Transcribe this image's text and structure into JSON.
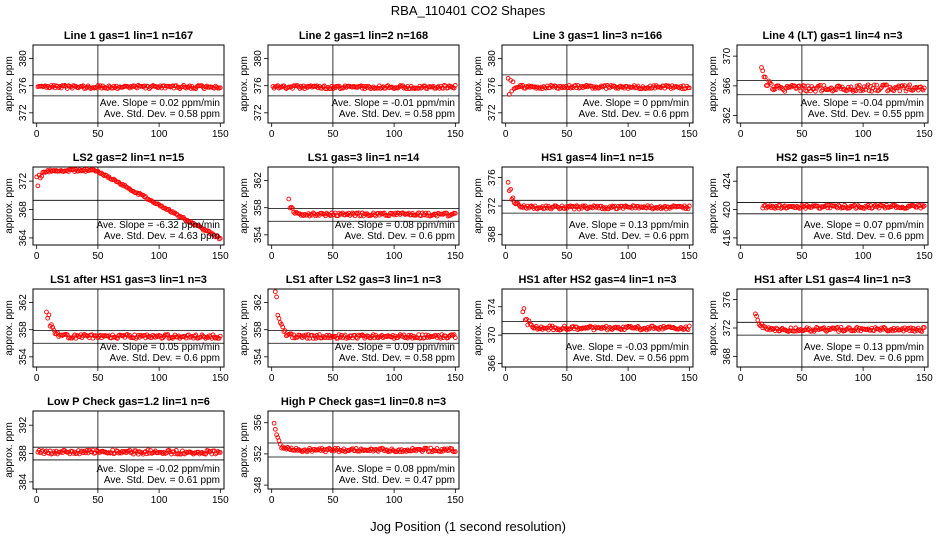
{
  "figure": {
    "title": "RBA_110401  CO2 Shapes",
    "xlabel": "Jog Position (1 second resolution)"
  },
  "colors": {
    "points": "#ff0000",
    "axes": "#000000"
  },
  "chart_data": [
    {
      "type": "scatter",
      "title": "Line 1 gas=1 lin=1 n=167",
      "ylabel": "approx. ppm",
      "xlim": [
        -3,
        153
      ],
      "xticks": [
        0,
        50,
        100,
        150
      ],
      "ylim": [
        370.5,
        382
      ],
      "yticks": [
        372,
        376,
        380
      ],
      "hlines": [
        377.6,
        374.5
      ],
      "vline": 50,
      "x_start": 1,
      "x_end": 150,
      "shape": "flat",
      "base": 375.8,
      "noise": 0.25,
      "annotation": [
        "Ave. Slope = 0.02 ppm/min",
        "Ave. Std. Dev. = 0.58 ppm"
      ]
    },
    {
      "type": "scatter",
      "title": "Line 2 gas=1 lin=2 n=168",
      "ylabel": "approx. ppm",
      "xlim": [
        -3,
        153
      ],
      "xticks": [
        0,
        50,
        100,
        150
      ],
      "ylim": [
        370.5,
        382
      ],
      "yticks": [
        372,
        376,
        380
      ],
      "hlines": [
        377.6,
        374.5
      ],
      "vline": 50,
      "x_start": 1,
      "x_end": 150,
      "shape": "flat",
      "base": 375.8,
      "noise": 0.25,
      "annotation": [
        "Ave. Slope = -0.01 ppm/min",
        "Ave. Std. Dev. = 0.58 ppm"
      ]
    },
    {
      "type": "scatter",
      "title": "Line 3 gas=1 lin=3 n=166",
      "ylabel": "approx. ppm",
      "xlim": [
        -3,
        153
      ],
      "xticks": [
        0,
        50,
        100,
        150
      ],
      "ylim": [
        370.5,
        382
      ],
      "yticks": [
        372,
        376,
        380
      ],
      "hlines": [
        377.6,
        374.5
      ],
      "vline": 50,
      "x_start": 2,
      "x_end": 150,
      "shape": "dip",
      "base": 375.8,
      "noise": 0.25,
      "annotation": [
        "Ave. Slope = 0 ppm/min",
        "Ave. Std. Dev. = 0.6 ppm"
      ]
    },
    {
      "type": "scatter",
      "title": "Line 4 (LT) gas=1 lin=4 n=3",
      "ylabel": "approx. ppm",
      "xlim": [
        -3,
        153
      ],
      "xticks": [
        0,
        50,
        100,
        150
      ],
      "ylim": [
        361,
        371.5
      ],
      "yticks": [
        362,
        366,
        370
      ],
      "hlines": [
        366.7,
        364.8
      ],
      "vline": 50,
      "x_start": 17,
      "x_end": 150,
      "shape": "spike",
      "base": 365.7,
      "noise": 0.45,
      "peak": 369.2,
      "annotation": [
        "Ave. Slope = -0.04 ppm/min",
        "Ave. Std. Dev. = 0.55 ppm"
      ]
    },
    {
      "type": "scatter",
      "title": "LS2 gas=2 lin=1 n=15",
      "ylabel": "approx. ppm",
      "xlim": [
        -3,
        153
      ],
      "xticks": [
        0,
        50,
        100,
        150
      ],
      "ylim": [
        363,
        374
      ],
      "yticks": [
        364,
        368,
        372
      ],
      "hlines": [
        369.3,
        366.6
      ],
      "vline": 50,
      "x_start": 0,
      "x_end": 150,
      "shape": "decline",
      "base": 373.5,
      "noise": 0.15,
      "annotation": [
        "Ave. Slope = -6.32 ppm/min",
        "Ave. Std. Dev. = 4.63 ppm"
      ]
    },
    {
      "type": "scatter",
      "title": "LS1 gas=3 lin=1 n=14",
      "ylabel": "approx. ppm",
      "xlim": [
        -3,
        153
      ],
      "xticks": [
        0,
        50,
        100,
        150
      ],
      "ylim": [
        352.5,
        364
      ],
      "yticks": [
        354,
        358,
        362
      ],
      "hlines": [
        357.9,
        356.0
      ],
      "vline": 50,
      "x_start": 14,
      "x_end": 150,
      "shape": "spike",
      "base": 357.0,
      "noise": 0.25,
      "peak": 358.8,
      "annotation": [
        "Ave. Slope = 0.08 ppm/min",
        "Ave. Std. Dev. = 0.6 ppm"
      ]
    },
    {
      "type": "scatter",
      "title": "HS1 gas=4 lin=1 n=15",
      "ylabel": "approx. ppm",
      "xlim": [
        -3,
        153
      ],
      "xticks": [
        0,
        50,
        100,
        150
      ],
      "ylim": [
        366.5,
        377.5
      ],
      "yticks": [
        368,
        372,
        376
      ],
      "hlines": [
        372.8,
        371.0
      ],
      "vline": 50,
      "x_start": 2,
      "x_end": 150,
      "shape": "spike",
      "base": 371.8,
      "noise": 0.25,
      "peak": 376.2,
      "annotation": [
        "Ave. Slope = 0.13 ppm/min",
        "Ave. Std. Dev. = 0.6 ppm"
      ]
    },
    {
      "type": "scatter",
      "title": "HS2 gas=5 lin=1 n=15",
      "ylabel": "approx. ppm",
      "xlim": [
        -3,
        153
      ],
      "xticks": [
        0,
        50,
        100,
        150
      ],
      "ylim": [
        415,
        426
      ],
      "yticks": [
        416,
        420,
        424
      ],
      "hlines": [
        421.0,
        419.4
      ],
      "vline": 50,
      "x_start": 18,
      "x_end": 150,
      "shape": "flat",
      "base": 420.4,
      "noise": 0.25,
      "annotation": [
        "Ave. Slope = 0.07 ppm/min",
        "Ave. Std. Dev. = 0.6 ppm"
      ]
    },
    {
      "type": "scatter",
      "title": "LS1 after HS1 gas=3 lin=1 n=3",
      "ylabel": "approx. ppm",
      "xlim": [
        -3,
        153
      ],
      "xticks": [
        0,
        50,
        100,
        150
      ],
      "ylim": [
        352.5,
        364
      ],
      "yticks": [
        354,
        358,
        362
      ],
      "hlines": [
        357.9,
        356.0
      ],
      "vline": 50,
      "x_start": 8,
      "x_end": 150,
      "shape": "spike",
      "base": 357.0,
      "noise": 0.3,
      "peak": 361.8,
      "annotation": [
        "Ave. Slope = 0.05 ppm/min",
        "Ave. Std. Dev. = 0.6 ppm"
      ]
    },
    {
      "type": "scatter",
      "title": "LS1 after LS2 gas=3 lin=1 n=3",
      "ylabel": "approx. ppm",
      "xlim": [
        -3,
        153
      ],
      "xticks": [
        0,
        50,
        100,
        150
      ],
      "ylim": [
        352.5,
        364
      ],
      "yticks": [
        354,
        358,
        362
      ],
      "hlines": [
        357.9,
        356.0
      ],
      "vline": 50,
      "x_start": 3,
      "x_end": 150,
      "shape": "spike",
      "base": 357.0,
      "noise": 0.3,
      "peak": 363.7,
      "annotation": [
        "Ave. Slope = 0.09 ppm/min",
        "Ave. Std. Dev. = 0.58 ppm"
      ]
    },
    {
      "type": "scatter",
      "title": "HS1 after HS2 gas=4 lin=1 n=3",
      "ylabel": "approx. ppm",
      "xlim": [
        -3,
        153
      ],
      "xticks": [
        0,
        50,
        100,
        150
      ],
      "ylim": [
        365.5,
        376.5
      ],
      "yticks": [
        366,
        370,
        374
      ],
      "hlines": [
        371.9,
        370.2
      ],
      "vline": 50,
      "x_start": 14,
      "x_end": 150,
      "shape": "spike",
      "base": 371.0,
      "noise": 0.3,
      "peak": 374.3,
      "annotation": [
        "Ave. Slope = -0.03 ppm/min",
        "Ave. Std. Dev. = 0.56 ppm"
      ]
    },
    {
      "type": "scatter",
      "title": "HS1 after LS1 gas=4 lin=1 n=3",
      "ylabel": "approx. ppm",
      "xlim": [
        -3,
        153
      ],
      "xticks": [
        0,
        50,
        100,
        150
      ],
      "ylim": [
        366.5,
        377.5
      ],
      "yticks": [
        368,
        372,
        376
      ],
      "hlines": [
        372.8,
        371.0
      ],
      "vline": 50,
      "x_start": 12,
      "x_end": 150,
      "shape": "spike",
      "base": 371.8,
      "noise": 0.3,
      "peak": 374.2,
      "annotation": [
        "Ave. Slope = 0.13 ppm/min",
        "Ave. Std. Dev. = 0.6 ppm"
      ]
    },
    {
      "type": "scatter",
      "title": "Low P Check gas=1.2 lin=1 n=6",
      "ylabel": "approx. ppm",
      "xlim": [
        -3,
        153
      ],
      "xticks": [
        0,
        50,
        100,
        150
      ],
      "ylim": [
        383,
        394
      ],
      "yticks": [
        384,
        388,
        392
      ],
      "hlines": [
        388.9,
        387.1
      ],
      "vline": 50,
      "x_start": 1,
      "x_end": 150,
      "shape": "flat",
      "base": 388.2,
      "noise": 0.3,
      "annotation": [
        "Ave. Slope = -0.02 ppm/min",
        "Ave. Std. Dev. = 0.61 ppm"
      ]
    },
    {
      "type": "scatter",
      "title": "High P Check gas=1 lin=0.8 n=3",
      "ylabel": "approx. ppm",
      "xlim": [
        -3,
        153
      ],
      "xticks": [
        0,
        50,
        100,
        150
      ],
      "ylim": [
        347.5,
        357.5
      ],
      "yticks": [
        348,
        352,
        356
      ],
      "hlines": [
        353.4,
        351.6
      ],
      "vline": 50,
      "x_start": 2,
      "x_end": 150,
      "shape": "spike",
      "base": 352.5,
      "noise": 0.25,
      "peak": 356.4,
      "annotation": [
        "Ave. Slope = 0.08 ppm/min",
        "Ave. Std. Dev. = 0.47 ppm"
      ]
    }
  ]
}
